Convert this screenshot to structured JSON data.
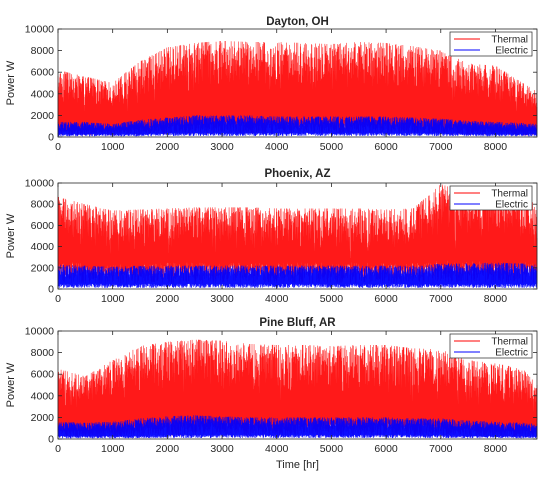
{
  "chart_data": [
    {
      "type": "line",
      "title": "Dayton, OH",
      "xlabel": "",
      "ylabel": "Power W",
      "xlim": [
        0,
        8760
      ],
      "ylim": [
        0,
        10000
      ],
      "xticks": [
        "0",
        "1000",
        "2000",
        "3000",
        "4000",
        "5000",
        "6000",
        "7000",
        "8000"
      ],
      "yticks": [
        "0",
        "2000",
        "4000",
        "6000",
        "8000",
        "10000"
      ],
      "legend": "top-right",
      "series": [
        {
          "name": "Thermal",
          "color": "#ff0000",
          "x": [
            0,
            500,
            1000,
            1500,
            2000,
            2500,
            3000,
            3500,
            4000,
            4500,
            5000,
            5500,
            6000,
            6500,
            7000,
            7500,
            8000,
            8500,
            8760
          ],
          "peak": [
            6200,
            5600,
            5000,
            7000,
            8300,
            8700,
            8900,
            8800,
            8800,
            8700,
            8600,
            8800,
            8700,
            8400,
            8000,
            6800,
            6600,
            5000,
            4200
          ],
          "base": [
            800,
            700,
            700,
            900,
            1200,
            1400,
            1500,
            1400,
            1400,
            1400,
            1400,
            1400,
            1400,
            1300,
            1200,
            900,
            800,
            700,
            700
          ]
        },
        {
          "name": "Electric",
          "color": "#0000ff",
          "x": [
            0,
            500,
            1000,
            1500,
            2000,
            2500,
            3000,
            3500,
            4000,
            4500,
            5000,
            5500,
            6000,
            6500,
            7000,
            7500,
            8000,
            8500,
            8760
          ],
          "peak": [
            1400,
            1400,
            1200,
            1600,
            1800,
            2000,
            2000,
            2000,
            1900,
            1900,
            1900,
            1900,
            1900,
            1800,
            1700,
            1500,
            1400,
            1300,
            1200
          ],
          "base": [
            300,
            300,
            300,
            300,
            400,
            400,
            400,
            400,
            400,
            400,
            400,
            400,
            400,
            400,
            400,
            300,
            300,
            300,
            300
          ]
        }
      ]
    },
    {
      "type": "line",
      "title": "Phoenix, AZ",
      "xlabel": "",
      "ylabel": "Power W",
      "xlim": [
        0,
        8760
      ],
      "ylim": [
        0,
        10000
      ],
      "xticks": [
        "0",
        "1000",
        "2000",
        "3000",
        "4000",
        "5000",
        "6000",
        "7000",
        "8000"
      ],
      "yticks": [
        "0",
        "2000",
        "4000",
        "6000",
        "8000",
        "10000"
      ],
      "legend": "top-right",
      "series": [
        {
          "name": "Thermal",
          "color": "#ff0000",
          "x": [
            0,
            500,
            1000,
            1500,
            2000,
            2500,
            3000,
            3500,
            4000,
            4500,
            5000,
            5500,
            6000,
            6500,
            7000,
            7500,
            8000,
            8500,
            8760
          ],
          "peak": [
            8700,
            8000,
            7400,
            7500,
            7600,
            7700,
            7700,
            7700,
            7600,
            7600,
            7600,
            7600,
            7500,
            7600,
            9900,
            9000,
            9600,
            8600,
            8000
          ],
          "base": [
            2500,
            2500,
            2300,
            2400,
            2500,
            2500,
            2500,
            2500,
            2500,
            2500,
            2500,
            2500,
            2500,
            2500,
            2700,
            2700,
            2600,
            2600,
            2500
          ]
        },
        {
          "name": "Electric",
          "color": "#0000ff",
          "x": [
            0,
            500,
            1000,
            1500,
            2000,
            2500,
            3000,
            3500,
            4000,
            4500,
            5000,
            5500,
            6000,
            6500,
            7000,
            7500,
            8000,
            8500,
            8760
          ],
          "peak": [
            2300,
            2200,
            2100,
            2200,
            2200,
            2200,
            2200,
            2200,
            2200,
            2200,
            2200,
            2200,
            2200,
            2200,
            2400,
            2400,
            2500,
            2400,
            2300
          ],
          "base": [
            500,
            500,
            500,
            500,
            500,
            500,
            500,
            500,
            500,
            500,
            500,
            500,
            500,
            500,
            500,
            500,
            500,
            500,
            500
          ]
        }
      ]
    },
    {
      "type": "line",
      "title": "Pine Bluff, AR",
      "xlabel": "Time [hr]",
      "ylabel": "Power W",
      "xlim": [
        0,
        8760
      ],
      "ylim": [
        0,
        10000
      ],
      "xticks": [
        "0",
        "1000",
        "2000",
        "3000",
        "4000",
        "5000",
        "6000",
        "7000",
        "8000"
      ],
      "yticks": [
        "0",
        "2000",
        "4000",
        "6000",
        "8000",
        "10000"
      ],
      "legend": "top-right",
      "series": [
        {
          "name": "Thermal",
          "color": "#ff0000",
          "x": [
            0,
            500,
            1000,
            1500,
            2000,
            2500,
            3000,
            3500,
            4000,
            4500,
            5000,
            5500,
            6000,
            6500,
            7000,
            7500,
            8000,
            8500,
            8760
          ],
          "peak": [
            6500,
            5800,
            7300,
            8600,
            9000,
            9200,
            9100,
            8800,
            8700,
            8700,
            8600,
            8700,
            8700,
            8400,
            8300,
            7300,
            7000,
            6500,
            5000
          ],
          "base": [
            1000,
            900,
            1000,
            1300,
            1600,
            1700,
            1600,
            1500,
            1500,
            1500,
            1500,
            1500,
            1500,
            1400,
            1300,
            1100,
            1000,
            900,
            900
          ]
        },
        {
          "name": "Electric",
          "color": "#0000ff",
          "x": [
            0,
            500,
            1000,
            1500,
            2000,
            2500,
            3000,
            3500,
            4000,
            4500,
            5000,
            5500,
            6000,
            6500,
            7000,
            7500,
            8000,
            8500,
            8760
          ],
          "peak": [
            1600,
            1500,
            1600,
            1900,
            2100,
            2200,
            2100,
            2000,
            2000,
            2000,
            2000,
            2000,
            2000,
            1900,
            1900,
            1700,
            1600,
            1500,
            1400
          ],
          "base": [
            300,
            300,
            300,
            300,
            400,
            400,
            400,
            400,
            400,
            400,
            400,
            400,
            400,
            400,
            400,
            300,
            300,
            300,
            300
          ]
        }
      ]
    }
  ]
}
